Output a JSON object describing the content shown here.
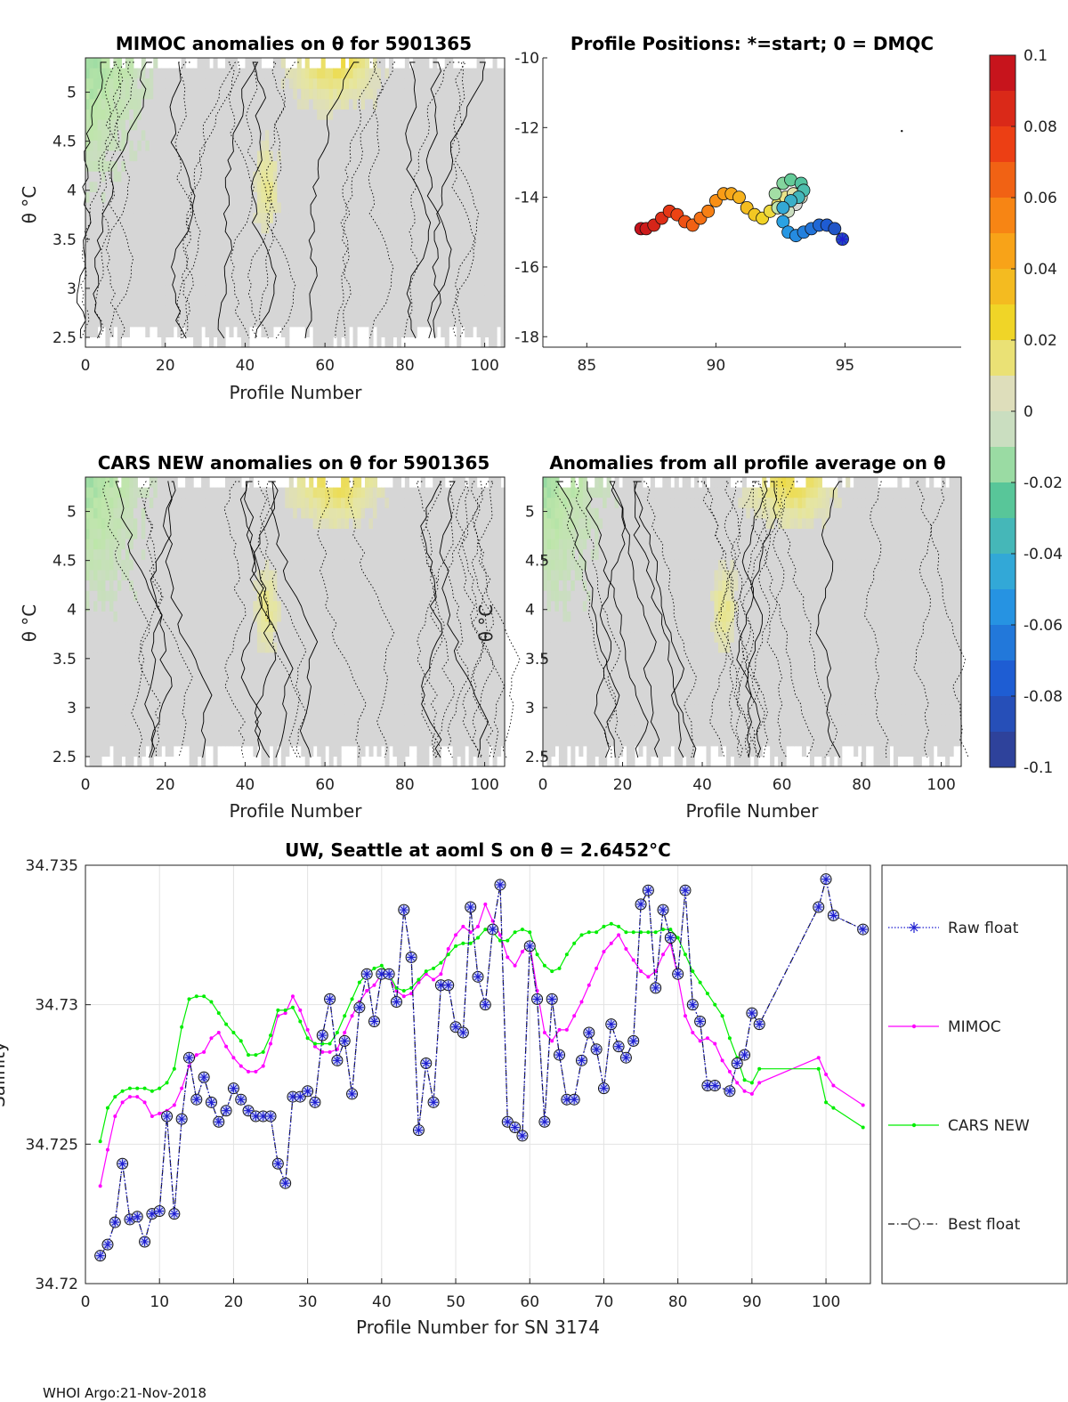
{
  "footer": "WHOI Argo:21-Nov-2018",
  "colors": {
    "raw_float": "#1f1fd0",
    "mimoc": "#ff00ff",
    "cars": "#00ee00",
    "best_float": "#111111",
    "neutral_field": "#d6d6d6",
    "contour": "#000000"
  },
  "chart_data": [
    {
      "id": "mimoc_anom",
      "type": "heatmap",
      "title": "MIMOC anomalies on θ  for 5901365",
      "xlabel": "Profile Number",
      "ylabel": "θ °C",
      "xlim": [
        0,
        105
      ],
      "ylim": [
        2.4,
        5.35
      ],
      "xticks": [
        0,
        20,
        40,
        60,
        80,
        100
      ],
      "yticks": [
        2.5,
        3,
        3.5,
        4,
        4.5,
        5
      ],
      "ytick_labels": [
        "2.5",
        "3",
        "3.5",
        "4",
        "4.5",
        "5"
      ],
      "contour_levels": [
        -0.005,
        0.005
      ]
    },
    {
      "id": "positions",
      "type": "scatter",
      "title": "Profile Positions: *=start; 0 = DMQC",
      "xlabel": "",
      "ylabel": "",
      "xlim": [
        83.3,
        99.5
      ],
      "ylim": [
        -18.3,
        -10
      ],
      "xticks": [
        85,
        90,
        95
      ],
      "yticks": [
        -10,
        -12,
        -14,
        -16,
        -18
      ],
      "start_marker": "*",
      "lon": [
        94.9,
        94.6,
        94.3,
        94.0,
        93.7,
        93.4,
        93.1,
        92.8,
        92.6,
        92.6,
        92.9,
        93.2,
        93.4,
        93.3,
        92.9,
        92.6,
        92.3,
        92.4,
        92.8,
        93.1,
        93.3,
        93.0,
        92.7,
        92.4,
        92.1,
        91.8,
        91.5,
        91.2,
        90.9,
        90.6,
        90.3,
        90.0,
        89.7,
        89.4,
        89.1,
        88.8,
        88.5,
        88.2,
        87.9,
        87.6,
        87.3,
        87.1
      ],
      "lat": [
        -15.2,
        -14.9,
        -14.8,
        -14.8,
        -14.9,
        -15.0,
        -15.1,
        -15.0,
        -14.7,
        -14.3,
        -14.1,
        -14.0,
        -13.8,
        -13.6,
        -13.5,
        -13.6,
        -13.9,
        -14.3,
        -14.4,
        -14.2,
        -14.0,
        -13.9,
        -14.0,
        -14.2,
        -14.4,
        -14.6,
        -14.5,
        -14.3,
        -14.0,
        -13.9,
        -13.9,
        -14.1,
        -14.4,
        -14.6,
        -14.8,
        -14.7,
        -14.5,
        -14.4,
        -14.6,
        -14.8,
        -14.9,
        -14.9
      ],
      "extra_point": {
        "lon": 97.2,
        "lat": -12.1
      }
    },
    {
      "id": "cars_anom",
      "type": "heatmap",
      "title": "CARS NEW anomalies on θ for 5901365",
      "xlabel": "Profile Number",
      "ylabel": "θ °C",
      "xlim": [
        0,
        105
      ],
      "ylim": [
        2.4,
        5.35
      ],
      "xticks": [
        0,
        20,
        40,
        60,
        80,
        100
      ],
      "yticks": [
        2.5,
        3,
        3.5,
        4,
        4.5,
        5
      ],
      "ytick_labels": [
        "2.5",
        "3",
        "3.5",
        "4",
        "4.5",
        "5"
      ],
      "contour_levels": [
        -0.005,
        0.005
      ]
    },
    {
      "id": "all_avg_anom",
      "type": "heatmap",
      "title": "Anomalies from all profile average on θ",
      "xlabel": "Profile Number",
      "ylabel": "θ °C",
      "xlim": [
        0,
        105
      ],
      "ylim": [
        2.4,
        5.35
      ],
      "xticks": [
        0,
        20,
        40,
        60,
        80,
        100
      ],
      "yticks": [
        2.5,
        3,
        3.5,
        4,
        4.5,
        5
      ],
      "ytick_labels": [
        "2.5",
        "3",
        "3.5",
        "4",
        "4.5",
        "5"
      ],
      "contour_levels": [
        -0.005,
        0.005
      ]
    },
    {
      "id": "colorbar",
      "type": "colorbar",
      "range": [
        -0.1,
        0.1
      ],
      "ticks": [
        0.1,
        0.08,
        0.06,
        0.04,
        0.02,
        0,
        -0.02,
        -0.04,
        -0.06,
        -0.08,
        -0.1
      ],
      "tick_labels": [
        "0.1",
        "0.08",
        "0.06",
        "0.04",
        "0.02",
        "0",
        "-0.02",
        "-0.04",
        "-0.06",
        "-0.08",
        "-0.1"
      ],
      "steps": 20
    },
    {
      "id": "salinity",
      "type": "line",
      "title": "UW, Seattle at aoml S on θ = 2.6452°C",
      "xlabel": "Profile Number for SN 3174",
      "ylabel": "Salinity",
      "xlim": [
        0,
        106
      ],
      "ylim": [
        34.72,
        34.735
      ],
      "xticks": [
        0,
        10,
        20,
        30,
        40,
        50,
        60,
        70,
        80,
        90,
        100
      ],
      "yticks": [
        34.72,
        34.725,
        34.73,
        34.735
      ],
      "ytick_labels": [
        "34.72",
        "34.725",
        "34.73",
        "34.735"
      ],
      "grid": true,
      "legend_position": "right-outside",
      "series": [
        {
          "name": "Raw float",
          "style": "dotted-star",
          "x": [
            2,
            3,
            4,
            5,
            6,
            7,
            8,
            9,
            10,
            11,
            12,
            13,
            14,
            15,
            16,
            17,
            18,
            19,
            20,
            21,
            22,
            23,
            24,
            25,
            26,
            27,
            28,
            29,
            30,
            31,
            32,
            33,
            34,
            35,
            36,
            37,
            38,
            39,
            40,
            41,
            42,
            43,
            44,
            45,
            46,
            47,
            48,
            49,
            50,
            51,
            52,
            53,
            54,
            55,
            56,
            57,
            58,
            59,
            60,
            61,
            62,
            63,
            64,
            65,
            66,
            67,
            68,
            69,
            70,
            71,
            72,
            73,
            74,
            75,
            76,
            77,
            78,
            79,
            80,
            81,
            82,
            83,
            84,
            85,
            87,
            88,
            89,
            90,
            91,
            99,
            100,
            101,
            105
          ],
          "y": [
            34.721,
            34.7214,
            34.7222,
            34.7243,
            34.7223,
            34.7224,
            34.7215,
            34.7225,
            34.7226,
            34.726,
            34.7225,
            34.7259,
            34.7281,
            34.7266,
            34.7274,
            34.7265,
            34.7258,
            34.7262,
            34.727,
            34.7266,
            34.7262,
            34.726,
            34.726,
            34.726,
            34.7243,
            34.7236,
            34.7267,
            34.7267,
            34.7269,
            34.7265,
            34.7289,
            34.7302,
            34.728,
            34.7287,
            34.7268,
            34.7299,
            34.7311,
            34.7294,
            34.7311,
            34.7311,
            34.7301,
            34.7334,
            34.7317,
            34.7255,
            34.7279,
            34.7265,
            34.7307,
            34.7307,
            34.7292,
            34.729,
            34.7335,
            34.731,
            34.73,
            34.7327,
            34.7343,
            34.7258,
            34.7256,
            34.7253,
            34.7321,
            34.7302,
            34.7258,
            34.7302,
            34.7282,
            34.7266,
            34.7266,
            34.728,
            34.729,
            34.7284,
            34.727,
            34.7293,
            34.7285,
            34.7281,
            34.7287,
            34.7336,
            34.7341,
            34.7306,
            34.7334,
            34.7324,
            34.7311,
            34.7341,
            34.73,
            34.7294,
            34.7271,
            34.7271,
            34.7269,
            34.7279,
            34.7282,
            34.7297,
            34.7293,
            34.7335,
            34.7345,
            34.7332,
            34.7327
          ]
        },
        {
          "name": "MIMOC",
          "style": "solid-dot",
          "x": [
            2,
            3,
            4,
            5,
            6,
            7,
            8,
            9,
            10,
            11,
            12,
            13,
            14,
            15,
            16,
            17,
            18,
            19,
            20,
            21,
            22,
            23,
            24,
            25,
            26,
            27,
            28,
            29,
            30,
            31,
            32,
            33,
            34,
            35,
            36,
            37,
            38,
            39,
            40,
            41,
            42,
            43,
            44,
            45,
            46,
            47,
            48,
            49,
            50,
            51,
            52,
            53,
            54,
            55,
            56,
            57,
            58,
            59,
            60,
            61,
            62,
            63,
            64,
            65,
            66,
            67,
            68,
            69,
            70,
            71,
            72,
            73,
            74,
            75,
            76,
            77,
            78,
            79,
            80,
            81,
            82,
            83,
            84,
            85,
            86,
            87,
            88,
            89,
            90,
            91,
            99,
            100,
            101,
            105
          ],
          "y": [
            34.7235,
            34.7248,
            34.726,
            34.7265,
            34.7267,
            34.7267,
            34.7265,
            34.726,
            34.7261,
            34.7262,
            34.7264,
            34.727,
            34.7278,
            34.7282,
            34.7283,
            34.7288,
            34.729,
            34.7285,
            34.7281,
            34.7278,
            34.7276,
            34.7276,
            34.7278,
            34.7286,
            34.7296,
            34.7297,
            34.7303,
            34.7298,
            34.7291,
            34.7285,
            34.7283,
            34.7283,
            34.7284,
            34.729,
            34.7296,
            34.7301,
            34.7305,
            34.7307,
            34.7311,
            34.731,
            34.7305,
            34.7303,
            34.7304,
            34.7308,
            34.7311,
            34.7309,
            34.7311,
            34.732,
            34.7325,
            34.7328,
            34.7326,
            34.7328,
            34.7336,
            34.733,
            34.7325,
            34.7317,
            34.7314,
            34.7319,
            34.7322,
            34.7305,
            34.729,
            34.7287,
            34.7291,
            34.7291,
            34.7296,
            34.7301,
            34.7307,
            34.7313,
            34.7319,
            34.7322,
            34.7325,
            34.732,
            34.7316,
            34.7312,
            34.731,
            34.7312,
            34.7318,
            34.7322,
            34.731,
            34.7296,
            34.729,
            34.7287,
            34.7288,
            34.7286,
            34.728,
            34.7276,
            34.7272,
            34.7269,
            34.7268,
            34.7272,
            34.7281,
            34.7275,
            34.7271,
            34.7264
          ]
        },
        {
          "name": "CARS NEW",
          "style": "solid-dot",
          "x": [
            2,
            3,
            4,
            5,
            6,
            7,
            8,
            9,
            10,
            11,
            12,
            13,
            14,
            15,
            16,
            17,
            18,
            19,
            20,
            21,
            22,
            23,
            24,
            25,
            26,
            27,
            28,
            29,
            30,
            31,
            32,
            33,
            34,
            35,
            36,
            37,
            38,
            39,
            40,
            41,
            42,
            43,
            44,
            45,
            46,
            47,
            48,
            49,
            50,
            51,
            52,
            53,
            54,
            55,
            56,
            57,
            58,
            59,
            60,
            61,
            62,
            63,
            64,
            65,
            66,
            67,
            68,
            69,
            70,
            71,
            72,
            73,
            74,
            75,
            76,
            77,
            78,
            79,
            80,
            81,
            82,
            83,
            84,
            85,
            86,
            87,
            88,
            89,
            90,
            91,
            99,
            100,
            101,
            105
          ],
          "y": [
            34.7251,
            34.7263,
            34.7267,
            34.7269,
            34.727,
            34.727,
            34.727,
            34.7269,
            34.727,
            34.7272,
            34.7277,
            34.7292,
            34.7302,
            34.7303,
            34.7303,
            34.7301,
            34.7297,
            34.7293,
            34.729,
            34.7287,
            34.7282,
            34.7282,
            34.7283,
            34.7289,
            34.7298,
            34.7298,
            34.7299,
            34.7294,
            34.7288,
            34.7286,
            34.7286,
            34.7286,
            34.729,
            34.7296,
            34.7302,
            34.7308,
            34.7311,
            34.7313,
            34.7314,
            34.7311,
            34.7306,
            34.7305,
            34.7306,
            34.7309,
            34.7312,
            34.7313,
            34.7315,
            34.7318,
            34.7321,
            34.7322,
            34.7322,
            34.7324,
            34.7327,
            34.7326,
            34.7323,
            34.7323,
            34.7326,
            34.7327,
            34.7326,
            34.7318,
            34.7314,
            34.7312,
            34.7313,
            34.7318,
            34.7322,
            34.7325,
            34.7326,
            34.7326,
            34.7328,
            34.7329,
            34.7328,
            34.7326,
            34.7326,
            34.7326,
            34.7326,
            34.7326,
            34.7327,
            34.7327,
            34.7324,
            34.7318,
            34.7312,
            34.7308,
            34.7304,
            34.73,
            34.7296,
            34.7288,
            34.7281,
            34.7273,
            34.7272,
            34.7277,
            34.7277,
            34.7265,
            34.7263,
            34.7256
          ]
        },
        {
          "name": "Best float",
          "style": "dashdot-circle",
          "x": [
            2,
            3,
            4,
            5,
            6,
            7,
            8,
            9,
            10,
            11,
            12,
            13,
            14,
            15,
            16,
            17,
            18,
            19,
            20,
            21,
            22,
            23,
            24,
            25,
            26,
            27,
            28,
            29,
            30,
            31,
            32,
            33,
            34,
            35,
            36,
            37,
            38,
            39,
            40,
            41,
            42,
            43,
            44,
            45,
            46,
            47,
            48,
            49,
            50,
            51,
            52,
            53,
            54,
            55,
            56,
            57,
            58,
            59,
            60,
            61,
            62,
            63,
            64,
            65,
            66,
            67,
            68,
            69,
            70,
            71,
            72,
            73,
            74,
            75,
            76,
            77,
            78,
            79,
            80,
            81,
            82,
            83,
            84,
            85,
            87,
            88,
            89,
            90,
            91,
            99,
            100,
            101,
            105
          ],
          "y": [
            34.721,
            34.7214,
            34.7222,
            34.7243,
            34.7223,
            34.7224,
            34.7215,
            34.7225,
            34.7226,
            34.726,
            34.7225,
            34.7259,
            34.7281,
            34.7266,
            34.7274,
            34.7265,
            34.7258,
            34.7262,
            34.727,
            34.7266,
            34.7262,
            34.726,
            34.726,
            34.726,
            34.7243,
            34.7236,
            34.7267,
            34.7267,
            34.7269,
            34.7265,
            34.7289,
            34.7302,
            34.728,
            34.7287,
            34.7268,
            34.7299,
            34.7311,
            34.7294,
            34.7311,
            34.7311,
            34.7301,
            34.7334,
            34.7317,
            34.7255,
            34.7279,
            34.7265,
            34.7307,
            34.7307,
            34.7292,
            34.729,
            34.7335,
            34.731,
            34.73,
            34.7327,
            34.7343,
            34.7258,
            34.7256,
            34.7253,
            34.7321,
            34.7302,
            34.7258,
            34.7302,
            34.7282,
            34.7266,
            34.7266,
            34.728,
            34.729,
            34.7284,
            34.727,
            34.7293,
            34.7285,
            34.7281,
            34.7287,
            34.7336,
            34.7341,
            34.7306,
            34.7334,
            34.7324,
            34.7311,
            34.7341,
            34.73,
            34.7294,
            34.7271,
            34.7271,
            34.7269,
            34.7279,
            34.7282,
            34.7297,
            34.7293,
            34.7335,
            34.7345,
            34.7332,
            34.7327
          ]
        }
      ]
    }
  ]
}
